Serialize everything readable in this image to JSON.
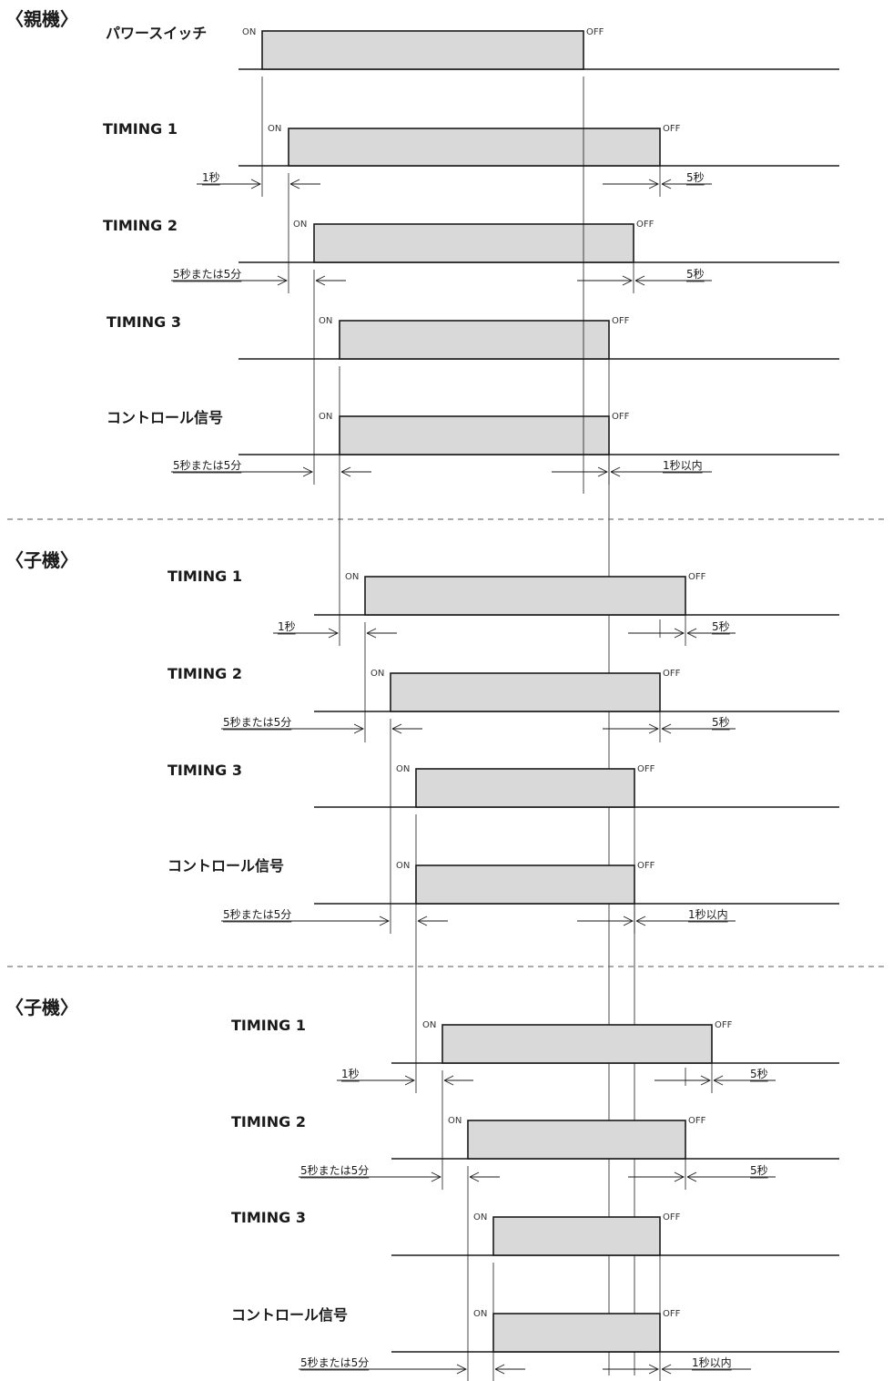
{
  "sections": [
    {
      "label": "〈親機〉",
      "signals": [
        {
          "name": "パワースイッチ",
          "on": "ON",
          "off": "OFF"
        },
        {
          "name": "TIMING 1",
          "on": "ON",
          "off": "OFF"
        },
        {
          "name": "TIMING 2",
          "on": "ON",
          "off": "OFF"
        },
        {
          "name": "TIMING 3",
          "on": "ON",
          "off": "OFF"
        },
        {
          "name": "コントロール信号",
          "on": "ON",
          "off": "OFF"
        }
      ],
      "delays": [
        {
          "start": "1秒",
          "end": "5秒"
        },
        {
          "start": "5秒または5分",
          "end": "5秒"
        },
        {
          "start": "5秒または5分",
          "end": "1秒以内"
        }
      ]
    },
    {
      "label": "〈子機〉",
      "signals": [
        {
          "name": "TIMING 1",
          "on": "ON",
          "off": "OFF"
        },
        {
          "name": "TIMING 2",
          "on": "ON",
          "off": "OFF"
        },
        {
          "name": "TIMING 3",
          "on": "ON",
          "off": "OFF"
        },
        {
          "name": "コントロール信号",
          "on": "ON",
          "off": "OFF"
        }
      ],
      "delays": [
        {
          "start": "1秒",
          "end": "5秒"
        },
        {
          "start": "5秒または5分",
          "end": "5秒"
        },
        {
          "start": "5秒または5分",
          "end": "1秒以内"
        }
      ]
    },
    {
      "label": "〈子機〉",
      "signals": [
        {
          "name": "TIMING 1",
          "on": "ON",
          "off": "OFF"
        },
        {
          "name": "TIMING 2",
          "on": "ON",
          "off": "OFF"
        },
        {
          "name": "TIMING 3",
          "on": "ON",
          "off": "OFF"
        },
        {
          "name": "コントロール信号",
          "on": "ON",
          "off": "OFF"
        }
      ],
      "delays": [
        {
          "start": "1秒",
          "end": "5秒"
        },
        {
          "start": "5秒または5分",
          "end": "5秒"
        },
        {
          "start": "5秒または5分",
          "end": "1秒以内"
        }
      ]
    }
  ]
}
